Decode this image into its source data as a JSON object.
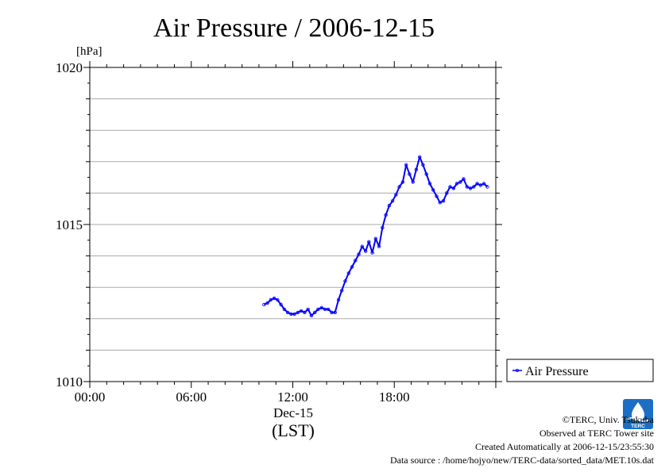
{
  "chart_data": {
    "type": "line",
    "title": "Air Pressure / 2006-12-15",
    "ylabel": "[hPa]",
    "xlabel": "(LST)",
    "x_date_label": "Dec-15",
    "ylim": [
      1010,
      1020
    ],
    "xlim": [
      0,
      24
    ],
    "y_ticks": [
      "1010",
      "1015",
      "1020"
    ],
    "x_ticks": [
      {
        "h": 0,
        "label": "00:00"
      },
      {
        "h": 6,
        "label": "06:00"
      },
      {
        "h": 12,
        "label": "12:00"
      },
      {
        "h": 18,
        "label": "18:00"
      }
    ],
    "grid": true,
    "legend_position": "right",
    "series": [
      {
        "name": "Air Pressure",
        "color": "#0000ff",
        "x": [
          10.3,
          10.5,
          10.7,
          10.9,
          11.1,
          11.3,
          11.5,
          11.7,
          11.9,
          12.1,
          12.3,
          12.5,
          12.7,
          12.9,
          13.1,
          13.3,
          13.5,
          13.7,
          13.9,
          14.1,
          14.3,
          14.5,
          14.7,
          14.9,
          15.1,
          15.3,
          15.5,
          15.7,
          15.9,
          16.1,
          16.3,
          16.5,
          16.7,
          16.9,
          17.1,
          17.3,
          17.5,
          17.7,
          17.9,
          18.1,
          18.3,
          18.5,
          18.7,
          18.9,
          19.1,
          19.3,
          19.5,
          19.7,
          19.9,
          20.1,
          20.3,
          20.5,
          20.7,
          20.9,
          21.1,
          21.3,
          21.5,
          21.7,
          21.9,
          22.1,
          22.3,
          22.5,
          22.7,
          22.9,
          23.1,
          23.3,
          23.5
        ],
        "values": [
          1012.45,
          1012.5,
          1012.6,
          1012.65,
          1012.6,
          1012.45,
          1012.3,
          1012.2,
          1012.15,
          1012.15,
          1012.2,
          1012.25,
          1012.2,
          1012.3,
          1012.1,
          1012.2,
          1012.3,
          1012.35,
          1012.3,
          1012.3,
          1012.2,
          1012.2,
          1012.6,
          1012.9,
          1013.2,
          1013.45,
          1013.65,
          1013.85,
          1014.05,
          1014.3,
          1014.15,
          1014.45,
          1014.1,
          1014.55,
          1014.3,
          1014.9,
          1015.3,
          1015.6,
          1015.75,
          1015.95,
          1016.2,
          1016.35,
          1016.9,
          1016.6,
          1016.35,
          1016.75,
          1017.15,
          1016.9,
          1016.6,
          1016.3,
          1016.1,
          1015.9,
          1015.7,
          1015.75,
          1016.0,
          1016.2,
          1016.15,
          1016.3,
          1016.35,
          1016.45,
          1016.2,
          1016.15,
          1016.2,
          1016.3,
          1016.25,
          1016.3,
          1016.2
        ]
      }
    ]
  },
  "footer": {
    "copyright": "©TERC, Univ. Tsukuba",
    "observed": "Observed at TERC Tower site",
    "created": "Created Automatically at 2006-12-15/23:55:30",
    "source": "Data source : /home/hojyo/new/TERC-data/sorted_data/MET.10s.dat"
  },
  "logo": {
    "text": "TERC",
    "color": "#1a6fc4"
  }
}
